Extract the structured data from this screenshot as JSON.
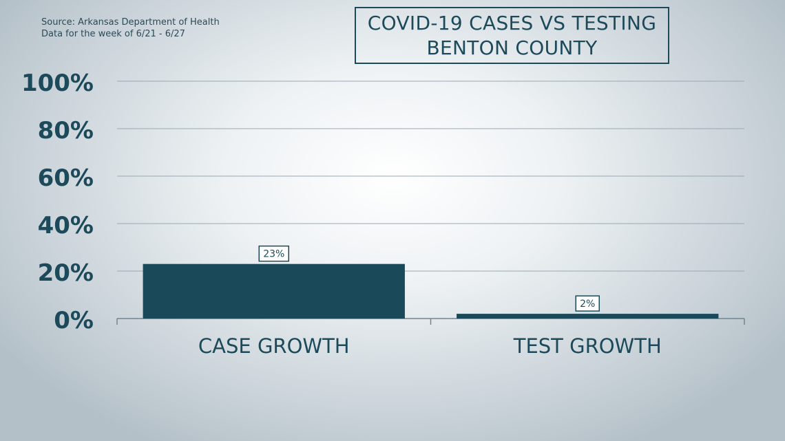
{
  "source": {
    "line1": "Source: Arkansas Department of Health",
    "line2": "Data for the week of 6/21 - 6/27"
  },
  "colors": {
    "bar": "#1a4a59",
    "text": "#1c4a5a",
    "grid": "#98a8b2"
  },
  "chart_data": {
    "type": "bar",
    "title": "COVID-19 CASES VS TESTING",
    "subtitle": "BENTON COUNTY",
    "categories": [
      "CASE GROWTH",
      "TEST GROWTH"
    ],
    "values": [
      23,
      2
    ],
    "value_labels": [
      "23%",
      "2%"
    ],
    "ylim": [
      0,
      100
    ],
    "yticks": [
      0,
      20,
      40,
      60,
      80,
      100
    ],
    "ytick_labels": [
      "0%",
      "20%",
      "40%",
      "60%",
      "80%",
      "100%"
    ],
    "xlabel": "",
    "ylabel": "",
    "grid": true,
    "legend": "none"
  }
}
